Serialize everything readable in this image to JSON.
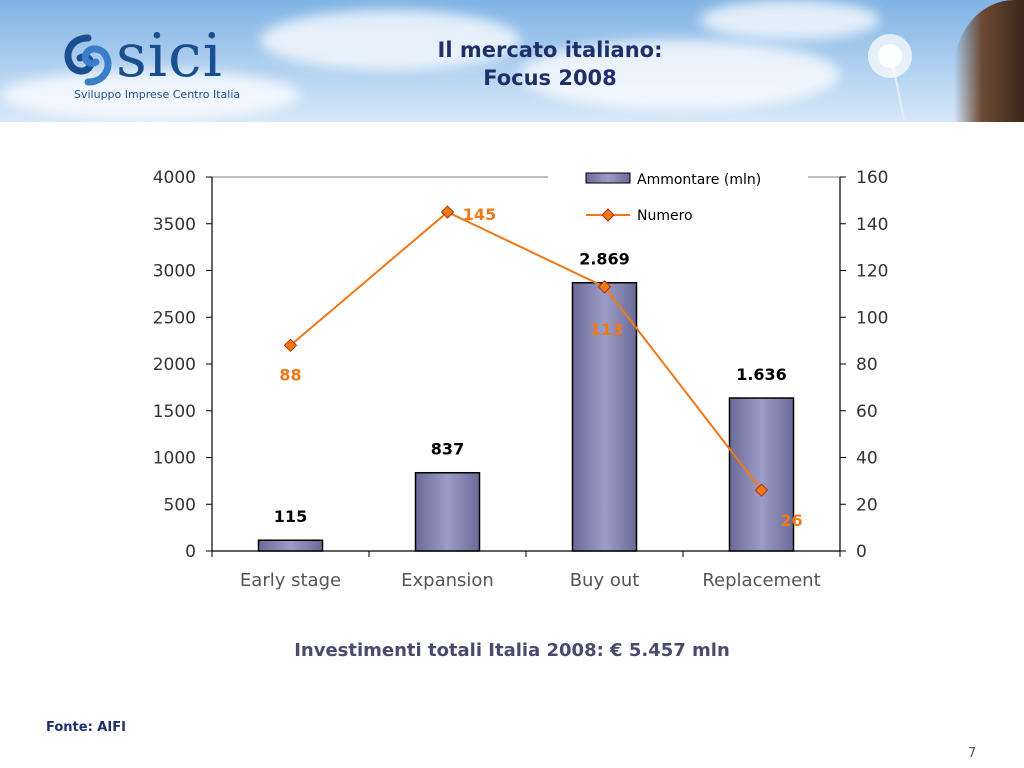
{
  "header": {
    "logo_word": "sici",
    "logo_tagline": "Sviluppo Imprese Centro Italia",
    "title_line1": "Il mercato italiano:",
    "title_line2": "Focus 2008"
  },
  "chart_data": {
    "type": "bar",
    "categories": [
      "Early stage",
      "Expansion",
      "Buy out",
      "Replacement"
    ],
    "series": [
      {
        "name": "Ammontare (mln)",
        "kind": "bar",
        "axis": "left",
        "values": [
          115,
          837,
          2869,
          1636
        ],
        "labels": [
          "115",
          "837",
          "2.869",
          "1.636"
        ],
        "color": "#8585b0"
      },
      {
        "name": "Numero",
        "kind": "line",
        "axis": "right",
        "values": [
          88,
          145,
          113,
          26
        ],
        "labels": [
          "88",
          "145",
          "113",
          "26"
        ],
        "color": "#f07818"
      }
    ],
    "y_left": {
      "min": 0,
      "max": 4000,
      "ticks": [
        "0",
        "500",
        "1000",
        "1500",
        "2000",
        "2500",
        "3000",
        "3500",
        "4000"
      ]
    },
    "y_right": {
      "min": 0,
      "max": 160,
      "ticks": [
        "0",
        "20",
        "40",
        "60",
        "80",
        "100",
        "120",
        "140",
        "160"
      ]
    },
    "legend_position": "top-right",
    "grid": false
  },
  "footer": {
    "subtitle": "Investimenti totali Italia 2008: € 5.457 mln",
    "source": "Fonte: AIFI",
    "page_number": "7"
  }
}
